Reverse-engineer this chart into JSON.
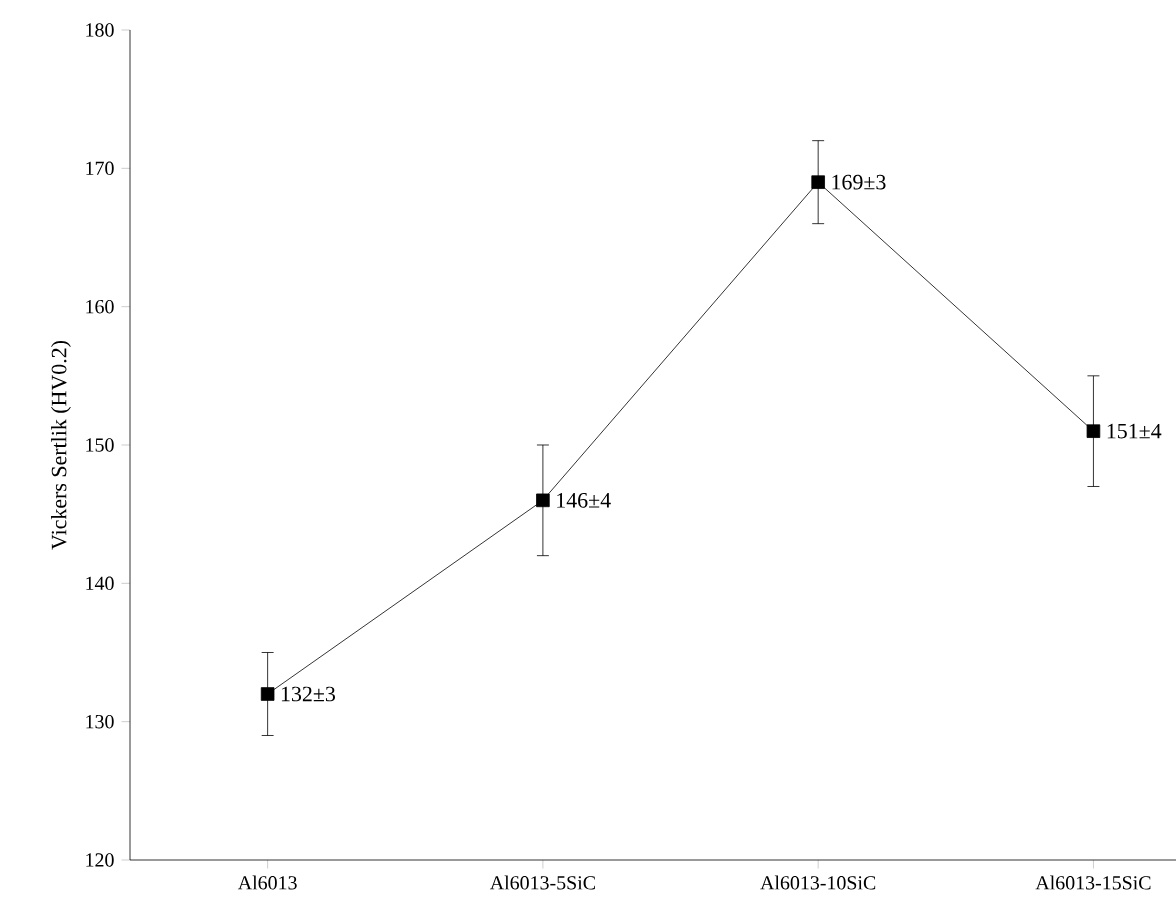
{
  "chart_data": {
    "type": "line",
    "ylabel": "Vickers Sertlik (HV0.2)",
    "categories": [
      "Al6013",
      "Al6013-5SiC",
      "Al6013-10SiC",
      "Al6013-15SiC"
    ],
    "series": [
      {
        "color": "#000000",
        "values": [
          132,
          146,
          169,
          151
        ],
        "errors": [
          3,
          4,
          3,
          4
        ],
        "value_labels": [
          "132±3",
          "146±4",
          "169±3",
          "151±4"
        ]
      }
    ],
    "ylim": [
      120,
      180
    ],
    "yticks": [
      120,
      130,
      140,
      150,
      160,
      170,
      180
    ],
    "marker": "square",
    "line_style": "solid",
    "grid": false
  }
}
